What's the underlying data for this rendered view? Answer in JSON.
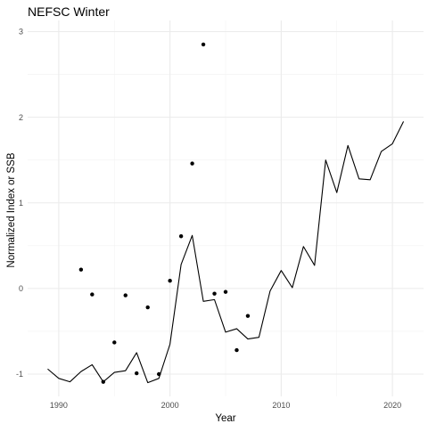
{
  "chart_data": {
    "type": "line",
    "title": "NEFSC Winter",
    "xlabel": "Year",
    "ylabel": "Normalized Index or SSB",
    "xlim": [
      1987.2,
      2022.8
    ],
    "ylim": [
      -1.26,
      3.13
    ],
    "x_ticks": [
      1990,
      2000,
      2010,
      2020
    ],
    "y_ticks": [
      -1,
      0,
      1,
      2,
      3
    ],
    "grid": true,
    "series": [
      {
        "kind": "line",
        "color": "#000000",
        "points": [
          [
            1989,
            -0.94
          ],
          [
            1990,
            -1.05
          ],
          [
            1991,
            -1.09
          ],
          [
            1992,
            -0.97
          ],
          [
            1993,
            -0.89
          ],
          [
            1994,
            -1.09
          ],
          [
            1995,
            -0.98
          ],
          [
            1996,
            -0.96
          ],
          [
            1997,
            -0.75
          ],
          [
            1998,
            -1.1
          ],
          [
            1999,
            -1.05
          ],
          [
            2000,
            -0.65
          ],
          [
            2001,
            0.28
          ],
          [
            2002,
            0.62
          ],
          [
            2003,
            -0.15
          ],
          [
            2004,
            -0.13
          ],
          [
            2005,
            -0.51
          ],
          [
            2006,
            -0.47
          ],
          [
            2007,
            -0.59
          ],
          [
            2008,
            -0.57
          ],
          [
            2009,
            -0.03
          ],
          [
            2010,
            0.21
          ],
          [
            2011,
            0.01
          ],
          [
            2012,
            0.49
          ],
          [
            2013,
            0.27
          ],
          [
            2014,
            1.5
          ],
          [
            2015,
            1.12
          ],
          [
            2016,
            1.67
          ],
          [
            2017,
            1.28
          ],
          [
            2018,
            1.27
          ],
          [
            2019,
            1.6
          ],
          [
            2020,
            1.69
          ],
          [
            2021,
            1.95
          ]
        ]
      },
      {
        "kind": "points",
        "color": "#000000",
        "points": [
          [
            1992,
            0.22
          ],
          [
            1993,
            -0.07
          ],
          [
            1994,
            -1.09
          ],
          [
            1995,
            -0.63
          ],
          [
            1996,
            -0.08
          ],
          [
            1997,
            -0.99
          ],
          [
            1998,
            -0.22
          ],
          [
            1999,
            -1.0
          ],
          [
            2000,
            0.09
          ],
          [
            2001,
            0.61
          ],
          [
            2002,
            1.46
          ],
          [
            2003,
            2.85
          ],
          [
            2004,
            -0.06
          ],
          [
            2005,
            -0.04
          ],
          [
            2006,
            -0.72
          ],
          [
            2007,
            -0.32
          ]
        ]
      }
    ]
  }
}
